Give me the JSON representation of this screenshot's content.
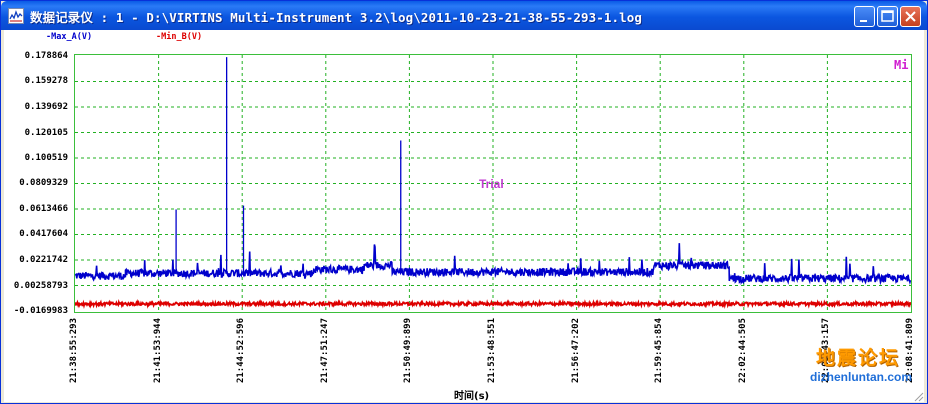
{
  "window": {
    "title": "数据记录仪 : 1 - D:\\VIRTINS Multi-Instrument 3.2\\log\\2011-10-23-21-38-55-293-1.log",
    "buttons": [
      "minimize",
      "maximize",
      "close"
    ]
  },
  "legend": {
    "series_a": "-Max_A(V)",
    "series_b": "-Min_B(V)",
    "color_a": "#0000cc",
    "color_b": "#dd0000"
  },
  "overlay": {
    "trial": "Trial",
    "mi": "Mi"
  },
  "watermark": {
    "cn": "地震论坛",
    "url": "dizhenluntan.com"
  },
  "chart_data": {
    "type": "line",
    "xlabel": "时间(s)",
    "ylabel": "",
    "y_ticks": [
      "0.178864",
      "0.159278",
      "0.139692",
      "0.120105",
      "0.100519",
      "0.0809329",
      "0.0613466",
      "0.0417604",
      "0.0221742",
      "0.00258793",
      "-0.0169983"
    ],
    "x_ticks": [
      "21:38:55:293",
      "21:41:53:944",
      "21:44:52:596",
      "21:47:51:247",
      "21:50:49:899",
      "21:53:48:551",
      "21:56:47:202",
      "21:59:45:854",
      "22:02:44:505",
      "22:05:43:157",
      "22:08:41:809"
    ],
    "ylim": [
      -0.0169983,
      0.178864
    ],
    "xlim": [
      "21:38:55:293",
      "22:08:41:809"
    ],
    "grid": true,
    "series": [
      {
        "name": "Max_A(V)",
        "color": "#0000cc",
        "baseline_segments": [
          {
            "from_min": 0.0,
            "to_min": 1.8,
            "value": 0.01
          },
          {
            "from_min": 1.8,
            "to_min": 8.5,
            "value": 0.012
          },
          {
            "from_min": 8.5,
            "to_min": 10.3,
            "value": 0.015
          },
          {
            "from_min": 10.3,
            "to_min": 11.3,
            "value": 0.018
          },
          {
            "from_min": 11.3,
            "to_min": 20.6,
            "value": 0.013
          },
          {
            "from_min": 20.6,
            "to_min": 23.3,
            "value": 0.018
          },
          {
            "from_min": 23.3,
            "to_min": 29.77,
            "value": 0.008
          }
        ],
        "spikes": [
          {
            "t_min": 3.6,
            "value": 0.061
          },
          {
            "t_min": 5.4,
            "value": 0.178
          },
          {
            "t_min": 6.0,
            "value": 0.064
          },
          {
            "t_min": 11.6,
            "value": 0.114
          }
        ]
      },
      {
        "name": "Min_B(V)",
        "color": "#dd0000",
        "baseline_segments": [
          {
            "from_min": 0.0,
            "to_min": 29.77,
            "value": -0.0115
          }
        ]
      }
    ]
  }
}
